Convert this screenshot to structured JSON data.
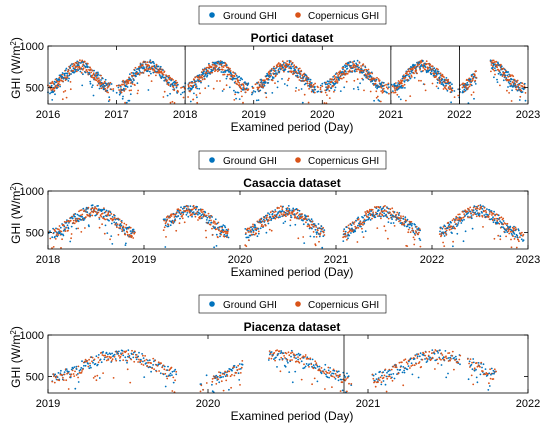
{
  "colors": {
    "ground": "#0072BD",
    "copernicus": "#D95319",
    "axis": "#000000",
    "vline": "#000000"
  },
  "chart_data": [
    {
      "type": "scatter",
      "title": "Portici dataset",
      "xlabel": "Examined period (Day)",
      "ylabel_main": "GHI (W/m",
      "ylabel_sup": "2",
      "ylabel_end": ")",
      "xlim": [
        2016,
        2023
      ],
      "ylim": [
        300,
        1000
      ],
      "yticks": [
        500,
        1000
      ],
      "xticks": [
        "2016",
        "2017",
        "2018",
        "2019",
        "2020",
        "2021",
        "2022",
        "2023"
      ],
      "year_dividers": [
        2018,
        2021,
        2022
      ],
      "legend": {
        "position": "top",
        "entries": [
          "Ground GHI",
          "Copernicus GHI"
        ]
      },
      "series": [
        {
          "name": "Ground GHI",
          "color_key": "ground"
        },
        {
          "name": "Copernicus GHI",
          "color_key": "copernicus"
        }
      ],
      "seasonal_profile": {
        "summer_peak": 760,
        "winter_trough": 480,
        "peak_day_of_year": 172
      },
      "gaps": [
        [
          2022.25,
          2022.45
        ]
      ]
    },
    {
      "type": "scatter",
      "title": "Casaccia dataset",
      "xlabel": "Examined period (Day)",
      "ylabel_main": "GHI (W/m",
      "ylabel_sup": "2",
      "ylabel_end": ")",
      "xlim": [
        2018,
        2023
      ],
      "ylim": [
        300,
        1000
      ],
      "yticks": [
        500,
        1000
      ],
      "xticks": [
        "2018",
        "2019",
        "2020",
        "2021",
        "2022",
        "2023"
      ],
      "year_dividers": [],
      "legend": {
        "position": "top",
        "entries": [
          "Ground GHI",
          "Copernicus GHI"
        ]
      },
      "series": [
        {
          "name": "Ground GHI",
          "color_key": "ground"
        },
        {
          "name": "Copernicus GHI",
          "color_key": "copernicus"
        }
      ],
      "seasonal_profile": {
        "summer_peak": 760,
        "winter_trough": 460,
        "peak_day_of_year": 175
      },
      "gaps": [
        [
          2018.93,
          2019.2
        ],
        [
          2019.88,
          2020.05
        ],
        [
          2020.88,
          2021.07
        ],
        [
          2021.88,
          2022.08
        ]
      ]
    },
    {
      "type": "scatter",
      "title": "Piacenza dataset",
      "xlabel": "Examined period (Day)",
      "ylabel_main": "GHI (W/m",
      "ylabel_sup": "2",
      "ylabel_end": ")",
      "xlim": [
        2019,
        2022
      ],
      "ylim": [
        300,
        1000
      ],
      "yticks": [
        500,
        1000
      ],
      "xticks": [
        "2019",
        "2020",
        "2021",
        "2022"
      ],
      "year_dividers": [
        2020.85
      ],
      "legend": {
        "position": "top",
        "entries": [
          "Ground GHI",
          "Copernicus GHI"
        ]
      },
      "series": [
        {
          "name": "Ground GHI",
          "color_key": "ground"
        },
        {
          "name": "Copernicus GHI",
          "color_key": "copernicus"
        }
      ],
      "seasonal_profile": {
        "summer_peak": 760,
        "winter_trough": 450,
        "peak_day_of_year": 165
      },
      "gaps": [
        [
          2019.8,
          2019.95
        ],
        [
          2020.22,
          2020.38
        ],
        [
          2020.9,
          2021.02
        ],
        [
          2021.58,
          2021.62
        ],
        [
          2021.8,
          2022
        ]
      ]
    }
  ]
}
